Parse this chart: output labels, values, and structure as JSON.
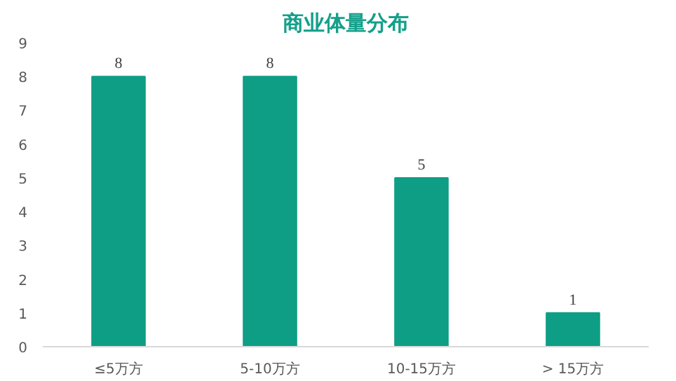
{
  "chart_data": {
    "type": "bar",
    "title": "商业体量分布",
    "categories": [
      "≤5万方",
      "5-10万方",
      "10-15万方",
      "> 15万方"
    ],
    "values": [
      8,
      8,
      5,
      1
    ],
    "color": "#0e9e85",
    "ylim": [
      0,
      9
    ],
    "yticks": [
      0,
      1,
      2,
      3,
      4,
      5,
      6,
      7,
      8,
      9
    ],
    "grid": false,
    "data_labels": true
  }
}
